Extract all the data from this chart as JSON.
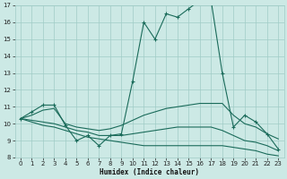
{
  "xlabel": "Humidex (Indice chaleur)",
  "xlim": [
    -0.5,
    23.5
  ],
  "ylim": [
    8,
    17
  ],
  "yticks": [
    8,
    9,
    10,
    11,
    12,
    13,
    14,
    15,
    16,
    17
  ],
  "xticks": [
    0,
    1,
    2,
    3,
    4,
    5,
    6,
    7,
    8,
    9,
    10,
    11,
    12,
    13,
    14,
    15,
    16,
    17,
    18,
    19,
    20,
    21,
    22,
    23
  ],
  "bg_color": "#cce9e5",
  "line_color": "#1a6b5a",
  "grid_color": "#a0ccc6",
  "lines": [
    {
      "x": [
        0,
        1,
        2,
        3,
        4,
        5,
        6,
        7,
        8,
        9,
        10,
        11,
        12,
        13,
        14,
        15,
        16,
        17,
        18,
        19,
        20,
        21,
        22,
        23
      ],
      "y": [
        10.3,
        10.7,
        11.1,
        11.1,
        9.9,
        9.0,
        9.3,
        8.7,
        9.3,
        9.4,
        12.5,
        16.0,
        15.0,
        16.5,
        16.3,
        16.8,
        17.3,
        17.3,
        13.0,
        9.8,
        10.5,
        10.1,
        9.4,
        8.5
      ],
      "marker": true
    },
    {
      "x": [
        0,
        1,
        2,
        3,
        4,
        5,
        6,
        7,
        8,
        9,
        10,
        11,
        12,
        13,
        14,
        15,
        16,
        17,
        18,
        19,
        20,
        21,
        22,
        23
      ],
      "y": [
        10.3,
        10.5,
        10.8,
        10.9,
        10.0,
        9.8,
        9.7,
        9.6,
        9.7,
        9.9,
        10.2,
        10.5,
        10.7,
        10.9,
        11.0,
        11.1,
        11.2,
        11.2,
        11.2,
        10.5,
        10.0,
        9.8,
        9.4,
        9.1
      ],
      "marker": false
    },
    {
      "x": [
        0,
        1,
        2,
        3,
        4,
        5,
        6,
        7,
        8,
        9,
        10,
        11,
        12,
        13,
        14,
        15,
        16,
        17,
        18,
        19,
        20,
        21,
        22,
        23
      ],
      "y": [
        10.3,
        10.2,
        10.1,
        10.0,
        9.8,
        9.6,
        9.5,
        9.3,
        9.3,
        9.3,
        9.4,
        9.5,
        9.6,
        9.7,
        9.8,
        9.8,
        9.8,
        9.8,
        9.6,
        9.3,
        9.0,
        8.9,
        8.7,
        8.4
      ],
      "marker": false
    },
    {
      "x": [
        0,
        1,
        2,
        3,
        4,
        5,
        6,
        7,
        8,
        9,
        10,
        11,
        12,
        13,
        14,
        15,
        16,
        17,
        18,
        19,
        20,
        21,
        22,
        23
      ],
      "y": [
        10.3,
        10.1,
        9.9,
        9.8,
        9.6,
        9.4,
        9.2,
        9.1,
        9.0,
        8.9,
        8.8,
        8.7,
        8.7,
        8.7,
        8.7,
        8.7,
        8.7,
        8.7,
        8.7,
        8.6,
        8.5,
        8.4,
        8.2,
        8.1
      ],
      "marker": false
    }
  ]
}
